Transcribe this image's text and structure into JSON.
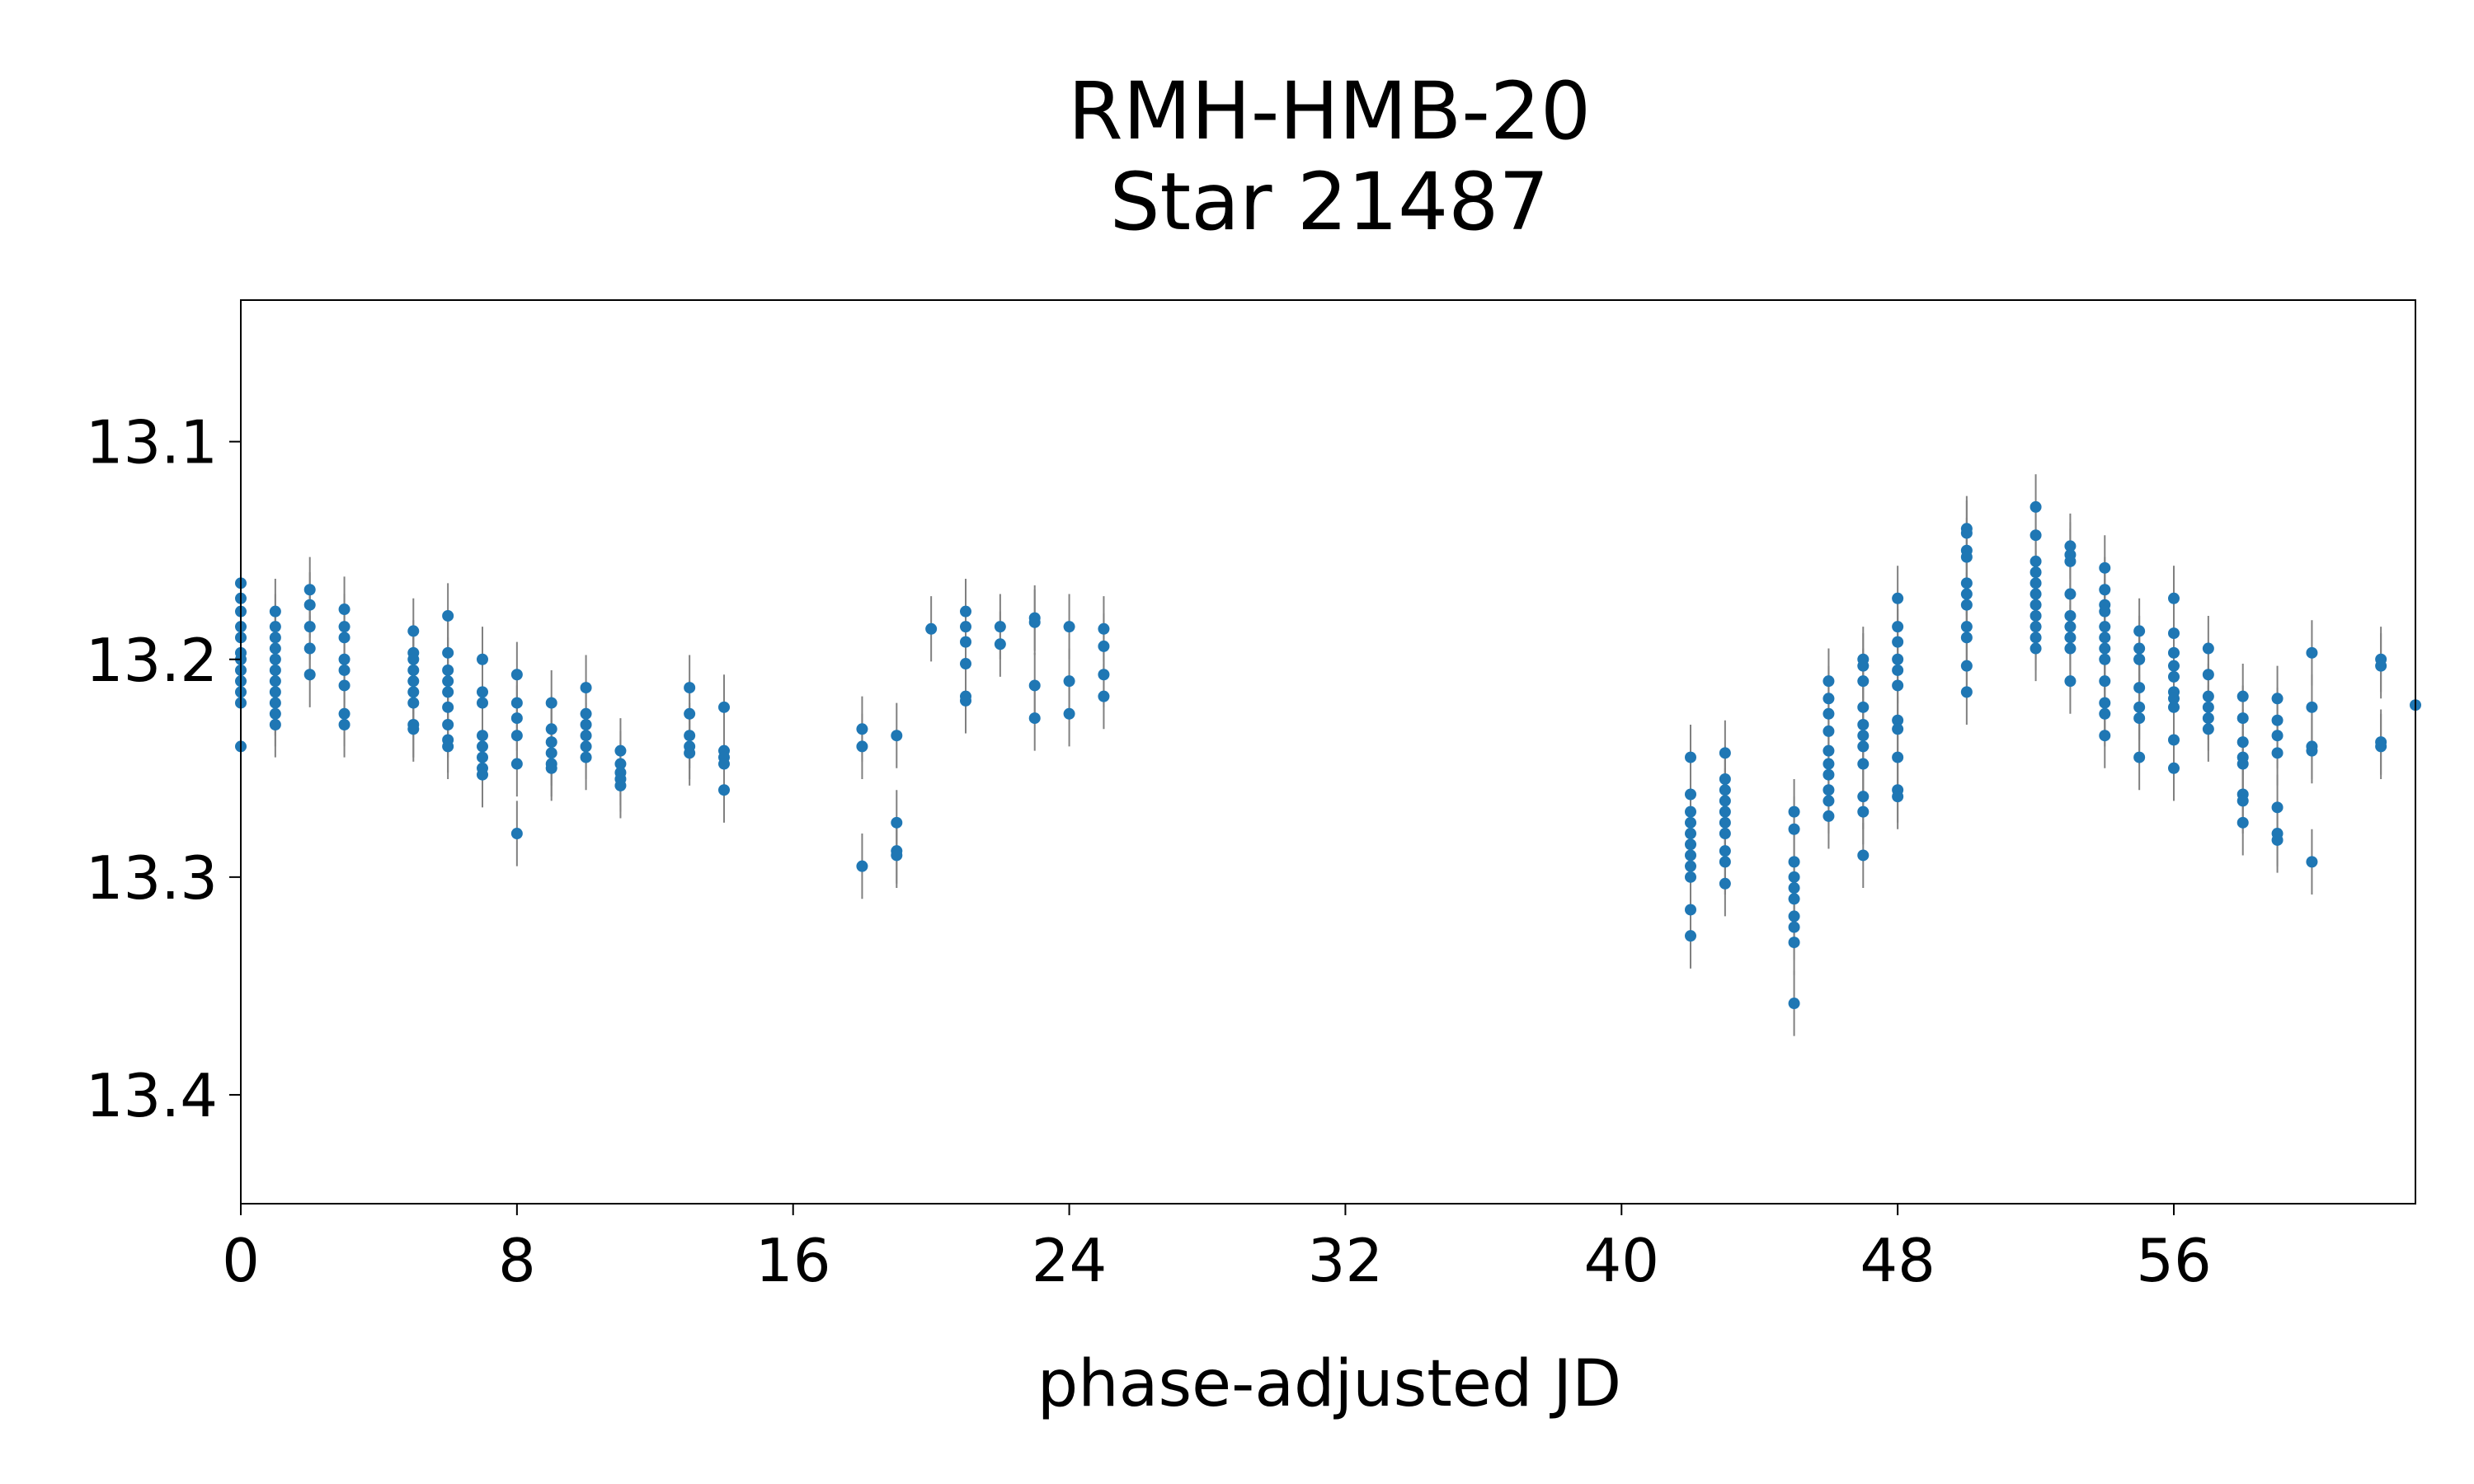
{
  "chart_data": {
    "type": "scatter",
    "title": "RMH-HMB-20",
    "subtitle": "Star 21487",
    "xlabel": "phase-adjusted JD",
    "ylabel": "",
    "xlim": [
      0,
      63
    ],
    "ylim": [
      13.45,
      13.035
    ],
    "y_inverted": true,
    "x_ticks": [
      0,
      8,
      16,
      24,
      32,
      40,
      48,
      56
    ],
    "y_ticks": [
      13.1,
      13.2,
      13.3,
      13.4
    ],
    "x_tick_labels": [
      "0",
      "8",
      "16",
      "24",
      "32",
      "40",
      "48",
      "56"
    ],
    "y_tick_labels": [
      "13.1",
      "13.2",
      "13.3",
      "13.4"
    ],
    "grid": false,
    "marker_color": "#1f77b4",
    "errorbar_color": "#808080",
    "series": [
      {
        "error": 0.015,
        "points": [
          [
            0.0,
            13.165
          ],
          [
            0.0,
            13.172
          ],
          [
            0.0,
            13.178
          ],
          [
            0.0,
            13.185
          ],
          [
            0.0,
            13.19
          ],
          [
            0.0,
            13.197
          ],
          [
            0.0,
            13.2
          ],
          [
            0.0,
            13.205
          ],
          [
            0.0,
            13.21
          ],
          [
            0.0,
            13.215
          ],
          [
            0.0,
            13.22
          ],
          [
            0.0,
            13.24
          ],
          [
            1.0,
            13.178
          ],
          [
            1.0,
            13.185
          ],
          [
            1.0,
            13.19
          ],
          [
            1.0,
            13.195
          ],
          [
            1.0,
            13.2
          ],
          [
            1.0,
            13.205
          ],
          [
            1.0,
            13.21
          ],
          [
            1.0,
            13.215
          ],
          [
            1.0,
            13.22
          ],
          [
            1.0,
            13.225
          ],
          [
            1.0,
            13.23
          ],
          [
            2.0,
            13.168
          ],
          [
            2.0,
            13.175
          ],
          [
            2.0,
            13.185
          ],
          [
            2.0,
            13.195
          ],
          [
            2.0,
            13.207
          ],
          [
            3.0,
            13.177
          ],
          [
            3.0,
            13.185
          ],
          [
            3.0,
            13.19
          ],
          [
            3.0,
            13.2
          ],
          [
            3.0,
            13.205
          ],
          [
            3.0,
            13.212
          ],
          [
            3.0,
            13.225
          ],
          [
            3.0,
            13.23
          ],
          [
            5.0,
            13.187
          ],
          [
            5.0,
            13.197
          ],
          [
            5.0,
            13.2
          ],
          [
            5.0,
            13.205
          ],
          [
            5.0,
            13.21
          ],
          [
            5.0,
            13.215
          ],
          [
            5.0,
            13.22
          ],
          [
            5.0,
            13.23
          ],
          [
            5.0,
            13.232
          ],
          [
            6.0,
            13.18
          ],
          [
            6.0,
            13.197
          ],
          [
            6.0,
            13.205
          ],
          [
            6.0,
            13.21
          ],
          [
            6.0,
            13.215
          ],
          [
            6.0,
            13.222
          ],
          [
            6.0,
            13.23
          ],
          [
            6.0,
            13.237
          ],
          [
            6.0,
            13.24
          ],
          [
            7.0,
            13.2
          ],
          [
            7.0,
            13.215
          ],
          [
            7.0,
            13.22
          ],
          [
            7.0,
            13.235
          ],
          [
            7.0,
            13.24
          ],
          [
            7.0,
            13.245
          ],
          [
            7.0,
            13.25
          ],
          [
            7.0,
            13.253
          ],
          [
            8.0,
            13.207
          ],
          [
            8.0,
            13.22
          ],
          [
            8.0,
            13.227
          ],
          [
            8.0,
            13.235
          ],
          [
            8.0,
            13.248
          ],
          [
            8.0,
            13.28
          ],
          [
            9.0,
            13.22
          ],
          [
            9.0,
            13.232
          ],
          [
            9.0,
            13.238
          ],
          [
            9.0,
            13.243
          ],
          [
            9.0,
            13.248
          ],
          [
            9.0,
            13.25
          ],
          [
            10.0,
            13.213
          ],
          [
            10.0,
            13.225
          ],
          [
            10.0,
            13.23
          ],
          [
            10.0,
            13.235
          ],
          [
            10.0,
            13.24
          ],
          [
            10.0,
            13.245
          ],
          [
            11.0,
            13.242
          ],
          [
            11.0,
            13.248
          ],
          [
            11.0,
            13.252
          ],
          [
            11.0,
            13.255
          ],
          [
            11.0,
            13.258
          ],
          [
            13.0,
            13.213
          ],
          [
            13.0,
            13.225
          ],
          [
            13.0,
            13.235
          ],
          [
            13.0,
            13.24
          ],
          [
            13.0,
            13.243
          ],
          [
            14.0,
            13.222
          ],
          [
            14.0,
            13.242
          ],
          [
            14.0,
            13.245
          ],
          [
            14.0,
            13.248
          ],
          [
            14.0,
            13.26
          ],
          [
            18.0,
            13.232
          ],
          [
            18.0,
            13.24
          ],
          [
            18.0,
            13.295
          ],
          [
            19.0,
            13.235
          ],
          [
            19.0,
            13.275
          ],
          [
            19.0,
            13.288
          ],
          [
            19.0,
            13.29
          ],
          [
            20.0,
            13.186
          ],
          [
            21.0,
            13.178
          ],
          [
            21.0,
            13.185
          ],
          [
            21.0,
            13.192
          ],
          [
            21.0,
            13.202
          ],
          [
            21.0,
            13.217
          ],
          [
            21.0,
            13.219
          ],
          [
            22.0,
            13.185
          ],
          [
            22.0,
            13.193
          ],
          [
            23.0,
            13.181
          ],
          [
            23.0,
            13.183
          ],
          [
            23.0,
            13.212
          ],
          [
            23.0,
            13.227
          ],
          [
            24.0,
            13.185
          ],
          [
            24.0,
            13.21
          ],
          [
            24.0,
            13.225
          ],
          [
            25.0,
            13.186
          ],
          [
            25.0,
            13.194
          ],
          [
            25.0,
            13.207
          ],
          [
            25.0,
            13.217
          ],
          [
            42.0,
            13.245
          ],
          [
            42.0,
            13.262
          ],
          [
            42.0,
            13.27
          ],
          [
            42.0,
            13.275
          ],
          [
            42.0,
            13.28
          ],
          [
            42.0,
            13.285
          ],
          [
            42.0,
            13.29
          ],
          [
            42.0,
            13.295
          ],
          [
            42.0,
            13.3
          ],
          [
            42.0,
            13.315
          ],
          [
            42.0,
            13.327
          ],
          [
            43.0,
            13.243
          ],
          [
            43.0,
            13.255
          ],
          [
            43.0,
            13.26
          ],
          [
            43.0,
            13.265
          ],
          [
            43.0,
            13.27
          ],
          [
            43.0,
            13.275
          ],
          [
            43.0,
            13.28
          ],
          [
            43.0,
            13.288
          ],
          [
            43.0,
            13.293
          ],
          [
            43.0,
            13.303
          ],
          [
            45.0,
            13.27
          ],
          [
            45.0,
            13.278
          ],
          [
            45.0,
            13.293
          ],
          [
            45.0,
            13.3
          ],
          [
            45.0,
            13.305
          ],
          [
            45.0,
            13.31
          ],
          [
            45.0,
            13.318
          ],
          [
            45.0,
            13.323
          ],
          [
            45.0,
            13.33
          ],
          [
            45.0,
            13.358
          ],
          [
            46.0,
            13.21
          ],
          [
            46.0,
            13.218
          ],
          [
            46.0,
            13.225
          ],
          [
            46.0,
            13.233
          ],
          [
            46.0,
            13.242
          ],
          [
            46.0,
            13.248
          ],
          [
            46.0,
            13.253
          ],
          [
            46.0,
            13.26
          ],
          [
            46.0,
            13.265
          ],
          [
            46.0,
            13.272
          ],
          [
            47.0,
            13.2
          ],
          [
            47.0,
            13.203
          ],
          [
            47.0,
            13.21
          ],
          [
            47.0,
            13.222
          ],
          [
            47.0,
            13.23
          ],
          [
            47.0,
            13.235
          ],
          [
            47.0,
            13.24
          ],
          [
            47.0,
            13.248
          ],
          [
            47.0,
            13.263
          ],
          [
            47.0,
            13.27
          ],
          [
            47.0,
            13.29
          ],
          [
            48.0,
            13.172
          ],
          [
            48.0,
            13.185
          ],
          [
            48.0,
            13.192
          ],
          [
            48.0,
            13.2
          ],
          [
            48.0,
            13.205
          ],
          [
            48.0,
            13.212
          ],
          [
            48.0,
            13.228
          ],
          [
            48.0,
            13.232
          ],
          [
            48.0,
            13.245
          ],
          [
            48.0,
            13.26
          ],
          [
            48.0,
            13.263
          ],
          [
            50.0,
            13.14
          ],
          [
            50.0,
            13.142
          ],
          [
            50.0,
            13.15
          ],
          [
            50.0,
            13.153
          ],
          [
            50.0,
            13.165
          ],
          [
            50.0,
            13.17
          ],
          [
            50.0,
            13.175
          ],
          [
            50.0,
            13.185
          ],
          [
            50.0,
            13.19
          ],
          [
            50.0,
            13.203
          ],
          [
            50.0,
            13.215
          ],
          [
            52.0,
            13.13
          ],
          [
            52.0,
            13.143
          ],
          [
            52.0,
            13.155
          ],
          [
            52.0,
            13.16
          ],
          [
            52.0,
            13.165
          ],
          [
            52.0,
            13.17
          ],
          [
            52.0,
            13.175
          ],
          [
            52.0,
            13.18
          ],
          [
            52.0,
            13.185
          ],
          [
            52.0,
            13.19
          ],
          [
            52.0,
            13.195
          ],
          [
            53.0,
            13.148
          ],
          [
            53.0,
            13.152
          ],
          [
            53.0,
            13.155
          ],
          [
            53.0,
            13.17
          ],
          [
            53.0,
            13.18
          ],
          [
            53.0,
            13.185
          ],
          [
            53.0,
            13.19
          ],
          [
            53.0,
            13.195
          ],
          [
            53.0,
            13.21
          ],
          [
            54.0,
            13.158
          ],
          [
            54.0,
            13.168
          ],
          [
            54.0,
            13.175
          ],
          [
            54.0,
            13.178
          ],
          [
            54.0,
            13.185
          ],
          [
            54.0,
            13.19
          ],
          [
            54.0,
            13.195
          ],
          [
            54.0,
            13.2
          ],
          [
            54.0,
            13.21
          ],
          [
            54.0,
            13.22
          ],
          [
            54.0,
            13.225
          ],
          [
            54.0,
            13.235
          ],
          [
            55.0,
            13.187
          ],
          [
            55.0,
            13.195
          ],
          [
            55.0,
            13.2
          ],
          [
            55.0,
            13.2
          ],
          [
            55.0,
            13.213
          ],
          [
            55.0,
            13.222
          ],
          [
            55.0,
            13.227
          ],
          [
            55.0,
            13.245
          ],
          [
            56.0,
            13.172
          ],
          [
            56.0,
            13.188
          ],
          [
            56.0,
            13.197
          ],
          [
            56.0,
            13.203
          ],
          [
            56.0,
            13.208
          ],
          [
            56.0,
            13.215
          ],
          [
            56.0,
            13.218
          ],
          [
            56.0,
            13.222
          ],
          [
            56.0,
            13.237
          ],
          [
            56.0,
            13.25
          ],
          [
            57.0,
            13.195
          ],
          [
            57.0,
            13.207
          ],
          [
            57.0,
            13.217
          ],
          [
            57.0,
            13.222
          ],
          [
            57.0,
            13.227
          ],
          [
            57.0,
            13.232
          ],
          [
            58.0,
            13.217
          ],
          [
            58.0,
            13.227
          ],
          [
            58.0,
            13.238
          ],
          [
            58.0,
            13.245
          ],
          [
            58.0,
            13.248
          ],
          [
            58.0,
            13.262
          ],
          [
            58.0,
            13.265
          ],
          [
            58.0,
            13.275
          ],
          [
            59.0,
            13.218
          ],
          [
            59.0,
            13.228
          ],
          [
            59.0,
            13.235
          ],
          [
            59.0,
            13.243
          ],
          [
            59.0,
            13.268
          ],
          [
            59.0,
            13.28
          ],
          [
            59.0,
            13.283
          ],
          [
            60.0,
            13.197
          ],
          [
            60.0,
            13.222
          ],
          [
            60.0,
            13.24
          ],
          [
            60.0,
            13.242
          ],
          [
            60.0,
            13.293
          ],
          [
            62.0,
            13.2
          ],
          [
            62.0,
            13.203
          ],
          [
            62.0,
            13.238
          ],
          [
            62.0,
            13.24
          ],
          [
            63.0,
            13.221
          ]
        ]
      }
    ]
  }
}
